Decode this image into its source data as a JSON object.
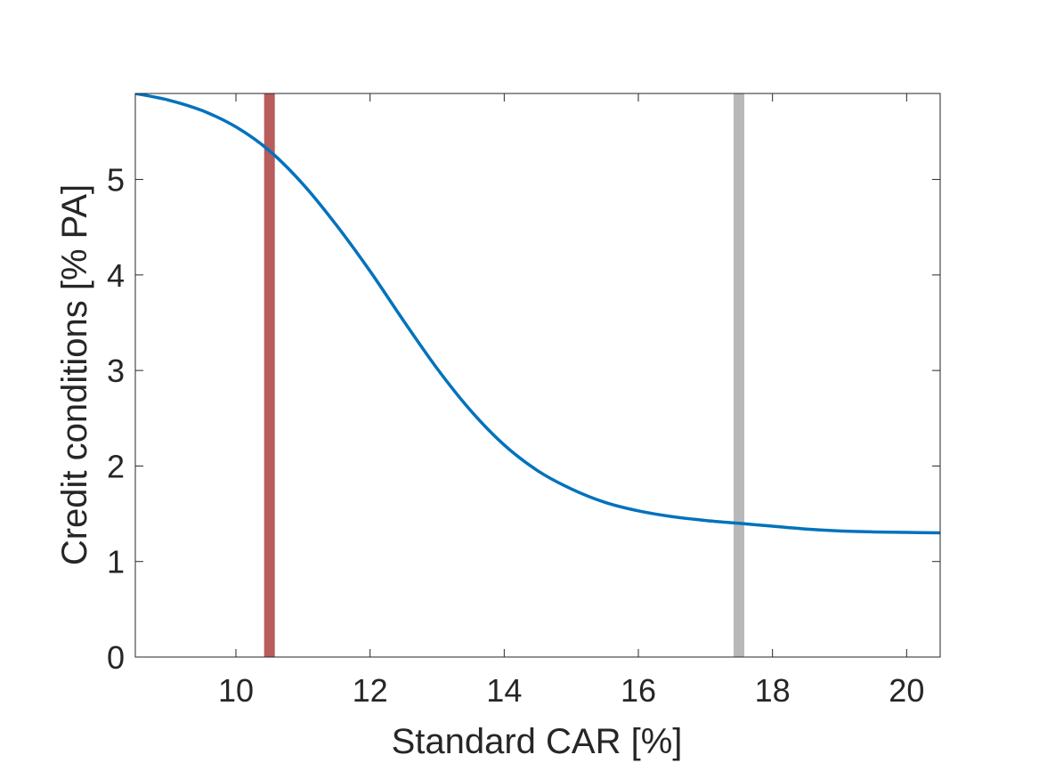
{
  "chart_data": {
    "type": "line",
    "title": "",
    "xlabel": "Standard CAR [%]",
    "ylabel": "Credit conditions [% PA]",
    "xlim": [
      8.5,
      20.5
    ],
    "ylim": [
      0,
      5.9
    ],
    "x_ticks": [
      10,
      12,
      14,
      16,
      18,
      20
    ],
    "y_ticks": [
      0,
      1,
      2,
      3,
      4,
      5
    ],
    "grid": false,
    "box": true,
    "series": [
      {
        "color": "#0072BD",
        "x": [
          8.5,
          9.0,
          9.5,
          10.0,
          10.5,
          11.0,
          11.5,
          12.0,
          12.5,
          13.0,
          13.5,
          14.0,
          14.5,
          15.0,
          15.5,
          16.0,
          16.5,
          17.0,
          17.5,
          18.0,
          18.5,
          19.0,
          19.5,
          20.0,
          20.5
        ],
        "y": [
          5.9,
          5.83,
          5.72,
          5.55,
          5.3,
          4.95,
          4.52,
          4.04,
          3.52,
          3.02,
          2.58,
          2.22,
          1.95,
          1.76,
          1.62,
          1.53,
          1.47,
          1.43,
          1.4,
          1.37,
          1.34,
          1.32,
          1.31,
          1.305,
          1.3
        ]
      }
    ],
    "vertical_lines": [
      {
        "x": 10.5,
        "color": "#B85C5C"
      },
      {
        "x": 17.5,
        "color": "#B8B8B8"
      }
    ]
  }
}
